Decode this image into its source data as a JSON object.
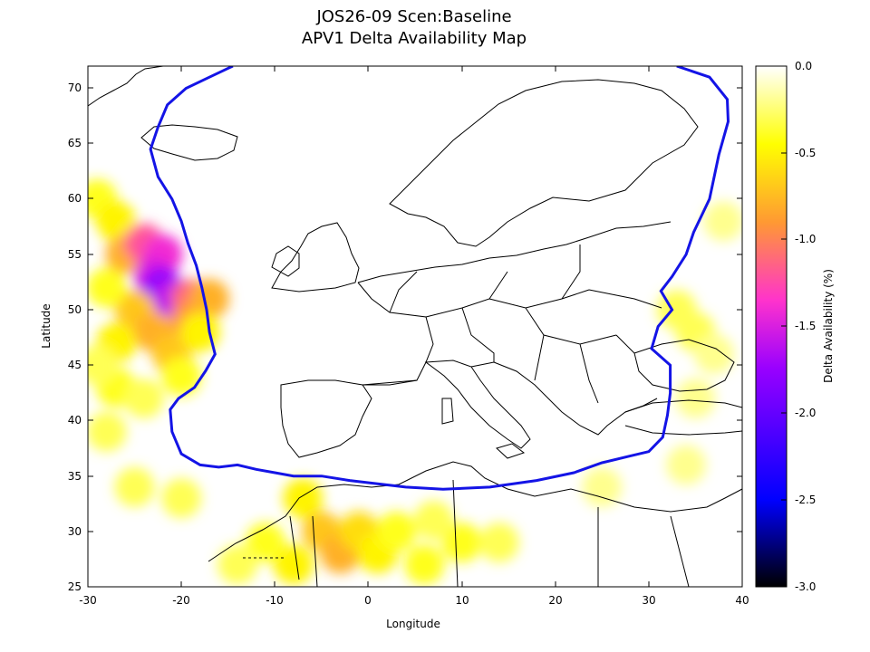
{
  "chart_data": {
    "type": "heatmap",
    "title": "JOS26-09 Scen:Baseline",
    "subtitle": "APV1 Delta Availability Map",
    "xlabel": "Longitude",
    "ylabel": "Latitude",
    "colorbar_label": "Delta Availability (%)",
    "xlim": [
      -30,
      40
    ],
    "ylim": [
      25,
      72
    ],
    "x_ticks": [
      "-30",
      "-20",
      "-10",
      "0",
      "10",
      "20",
      "30",
      "40"
    ],
    "y_ticks": [
      "25",
      "30",
      "35",
      "40",
      "45",
      "50",
      "55",
      "60",
      "65",
      "70"
    ],
    "colorbar_range": [
      -3.0,
      0.0
    ],
    "colorbar_ticks": [
      "0.0",
      "-0.5",
      "-1.0",
      "-1.5",
      "-2.0",
      "-2.5",
      "-3.0"
    ],
    "colormap": [
      "#000000",
      "#0000ff",
      "#9900ff",
      "#ff33cc",
      "#ff9933",
      "#ffff00",
      "#ffffff"
    ],
    "boundary_color": "#1414e6",
    "regions": [
      {
        "lon": -29,
        "lat": 60,
        "delta": -0.4
      },
      {
        "lon": -27,
        "lat": 58,
        "delta": -0.5
      },
      {
        "lon": -26,
        "lat": 55,
        "delta": -0.8
      },
      {
        "lon": -24,
        "lat": 56,
        "delta": -1.2
      },
      {
        "lon": -22,
        "lat": 55,
        "delta": -1.4
      },
      {
        "lon": -23,
        "lat": 53,
        "delta": -1.5
      },
      {
        "lon": -22,
        "lat": 52,
        "delta": -1.8
      },
      {
        "lon": -21,
        "lat": 51,
        "delta": -1.6
      },
      {
        "lon": -19,
        "lat": 51,
        "delta": -1.1
      },
      {
        "lon": -19,
        "lat": 49,
        "delta": -0.9
      },
      {
        "lon": -17,
        "lat": 51,
        "delta": -0.8
      },
      {
        "lon": -25,
        "lat": 50,
        "delta": -0.7
      },
      {
        "lon": -23,
        "lat": 48,
        "delta": -0.8
      },
      {
        "lon": -21,
        "lat": 46,
        "delta": -0.7
      },
      {
        "lon": -27,
        "lat": 47,
        "delta": -0.5
      },
      {
        "lon": -28,
        "lat": 52,
        "delta": -0.4
      },
      {
        "lon": -27,
        "lat": 43,
        "delta": -0.4
      },
      {
        "lon": -24,
        "lat": 42,
        "delta": -0.3
      },
      {
        "lon": -28,
        "lat": 39,
        "delta": -0.3
      },
      {
        "lon": -29,
        "lat": 45,
        "delta": -0.3
      },
      {
        "lon": -20,
        "lat": 44,
        "delta": -0.4
      },
      {
        "lon": -18,
        "lat": 48,
        "delta": -0.5
      },
      {
        "lon": -25,
        "lat": 34,
        "delta": -0.3
      },
      {
        "lon": -20,
        "lat": 33,
        "delta": -0.3
      },
      {
        "lon": -7,
        "lat": 33,
        "delta": -0.5
      },
      {
        "lon": -5,
        "lat": 30,
        "delta": -0.7
      },
      {
        "lon": -3,
        "lat": 28,
        "delta": -0.8
      },
      {
        "lon": -1,
        "lat": 30,
        "delta": -0.6
      },
      {
        "lon": 1,
        "lat": 28,
        "delta": -0.5
      },
      {
        "lon": 3,
        "lat": 30,
        "delta": -0.4
      },
      {
        "lon": -8,
        "lat": 27,
        "delta": -0.5
      },
      {
        "lon": 6,
        "lat": 27,
        "delta": -0.4
      },
      {
        "lon": 10,
        "lat": 29,
        "delta": -0.4
      },
      {
        "lon": 14,
        "lat": 29,
        "delta": -0.3
      },
      {
        "lon": 7,
        "lat": 31,
        "delta": -0.3
      },
      {
        "lon": -11,
        "lat": 29,
        "delta": -0.4
      },
      {
        "lon": -14,
        "lat": 27,
        "delta": -0.3
      },
      {
        "lon": 33,
        "lat": 50,
        "delta": -0.3
      },
      {
        "lon": 35,
        "lat": 48,
        "delta": -0.3
      },
      {
        "lon": 37,
        "lat": 46,
        "delta": -0.2
      },
      {
        "lon": 38,
        "lat": 58,
        "delta": -0.2
      },
      {
        "lon": 35,
        "lat": 42,
        "delta": -0.2
      },
      {
        "lon": 25,
        "lat": 34,
        "delta": -0.2
      },
      {
        "lon": 34,
        "lat": 36,
        "delta": -0.2
      }
    ],
    "boundary": [
      [
        -14.5,
        72
      ],
      [
        -17,
        71
      ],
      [
        -19.5,
        70
      ],
      [
        -21.5,
        68.5
      ],
      [
        -22.5,
        66.5
      ],
      [
        -23.3,
        64.5
      ],
      [
        -22.5,
        62
      ],
      [
        -21,
        60
      ],
      [
        -20,
        58
      ],
      [
        -19.3,
        56
      ],
      [
        -18.4,
        54
      ],
      [
        -17.8,
        52
      ],
      [
        -17.3,
        50
      ],
      [
        -17,
        48
      ],
      [
        -16.4,
        46
      ],
      [
        -17.4,
        44.5
      ],
      [
        -18.6,
        43
      ],
      [
        -20.3,
        42
      ],
      [
        -21.2,
        41
      ],
      [
        -21,
        39
      ],
      [
        -20,
        37
      ],
      [
        -18,
        36
      ],
      [
        -16,
        35.8
      ],
      [
        -14,
        36
      ],
      [
        -12,
        35.6
      ],
      [
        -10,
        35.3
      ],
      [
        -8,
        35
      ],
      [
        -5,
        35
      ],
      [
        -2,
        34.6
      ],
      [
        1,
        34.3
      ],
      [
        4,
        34
      ],
      [
        8,
        33.8
      ],
      [
        13,
        34
      ],
      [
        18,
        34.6
      ],
      [
        22,
        35.3
      ],
      [
        25,
        36.2
      ],
      [
        28,
        36.8
      ],
      [
        30,
        37.2
      ],
      [
        31.5,
        38.5
      ],
      [
        32,
        40.5
      ],
      [
        32.3,
        42.5
      ],
      [
        32.3,
        45
      ],
      [
        30.3,
        46.5
      ],
      [
        31,
        48.5
      ],
      [
        32.5,
        50
      ],
      [
        31.3,
        51.7
      ],
      [
        32.5,
        53
      ],
      [
        34,
        55
      ],
      [
        34.8,
        57
      ],
      [
        36.5,
        60
      ],
      [
        37.5,
        64
      ],
      [
        38.5,
        67
      ],
      [
        38.4,
        69
      ],
      [
        36.5,
        71
      ],
      [
        33,
        72
      ]
    ]
  }
}
